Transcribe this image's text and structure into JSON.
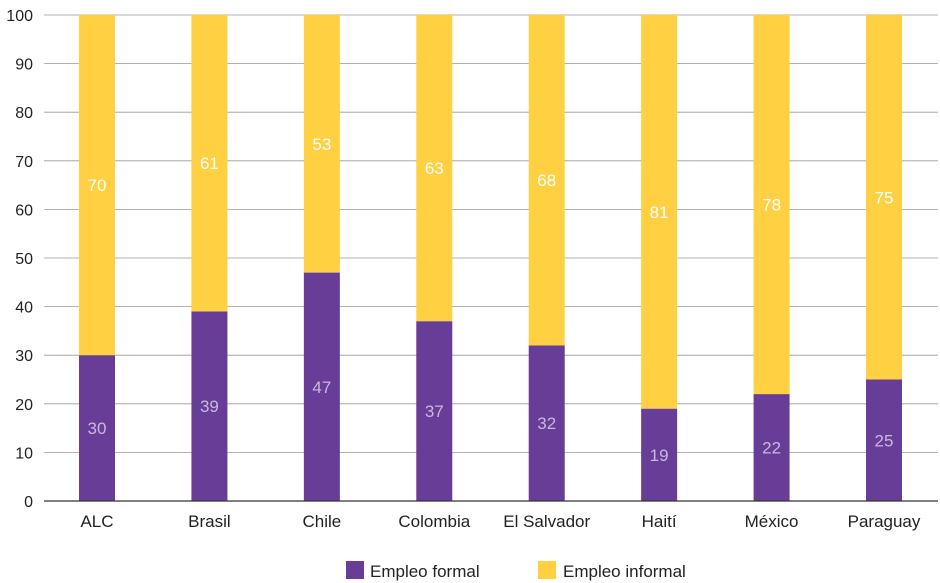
{
  "chart_data": {
    "type": "bar",
    "stacked": true,
    "categories": [
      "ALC",
      "Brasil",
      "Chile",
      "Colombia",
      "El Salvador",
      "Haití",
      "México",
      "Paraguay"
    ],
    "series": [
      {
        "name": "Empleo formal",
        "color": "#673d97",
        "label_color": "#c9b8e0",
        "values": [
          30,
          39,
          47,
          37,
          32,
          19,
          22,
          25
        ]
      },
      {
        "name": "Empleo informal",
        "color": "#fed042",
        "label_color": "#ffffff",
        "values": [
          70,
          61,
          53,
          63,
          68,
          81,
          78,
          75
        ]
      }
    ],
    "ylim": [
      0,
      100
    ],
    "yticks": [
      0,
      10,
      20,
      30,
      40,
      50,
      60,
      70,
      80,
      90,
      100
    ],
    "grid": true,
    "legend_position": "bottom"
  }
}
